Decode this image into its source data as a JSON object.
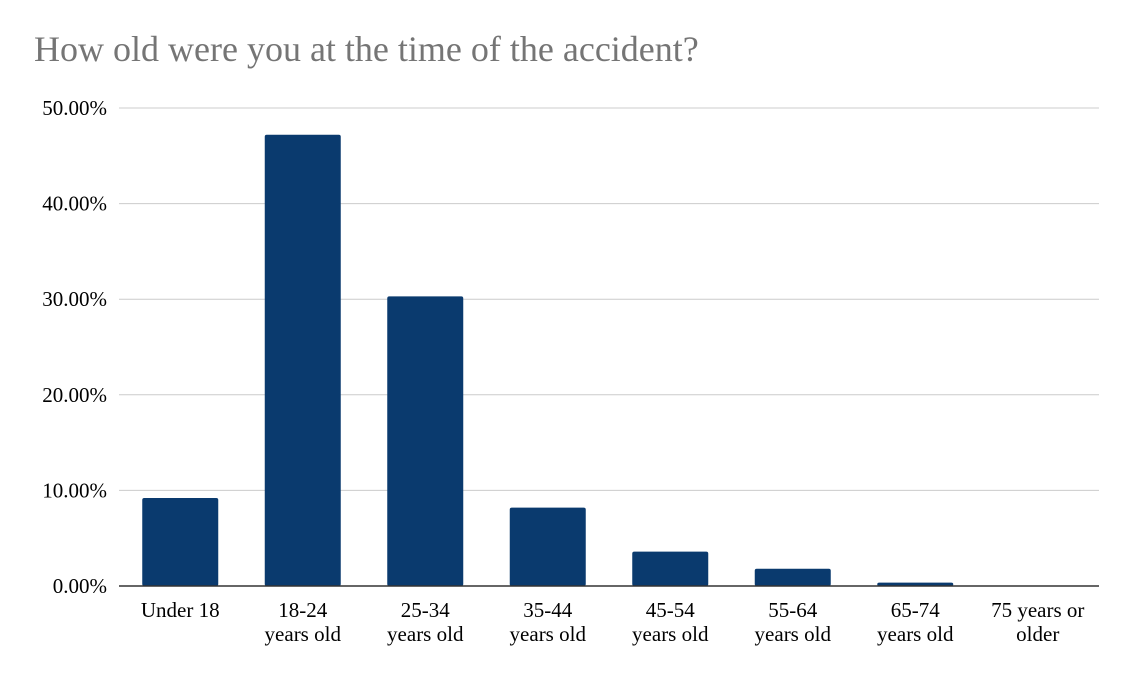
{
  "chart_data": {
    "type": "bar",
    "title": "How old were you at the time of the accident?",
    "xlabel": "",
    "ylabel": "",
    "categories": [
      [
        "Under 18"
      ],
      [
        "18-24",
        "years old"
      ],
      [
        "25-34",
        "years old"
      ],
      [
        "35-44",
        "years old"
      ],
      [
        "45-54",
        "years old"
      ],
      [
        "55-64",
        "years old"
      ],
      [
        "65-74",
        "years old"
      ],
      [
        "75 years or",
        "older"
      ]
    ],
    "values": [
      9.2,
      47.2,
      30.3,
      8.2,
      3.6,
      1.8,
      0.35,
      0.05
    ],
    "ylim": [
      0,
      50
    ],
    "yticks": [
      0,
      10,
      20,
      30,
      40,
      50
    ],
    "ytick_labels": [
      "0.00%",
      "10.00%",
      "20.00%",
      "30.00%",
      "40.00%",
      "50.00%"
    ],
    "grid": true,
    "legend": "none",
    "colors": {
      "bar": "#0a3a6e",
      "grid": "#cccccc",
      "axis": "#333333",
      "title": "#757575"
    }
  }
}
